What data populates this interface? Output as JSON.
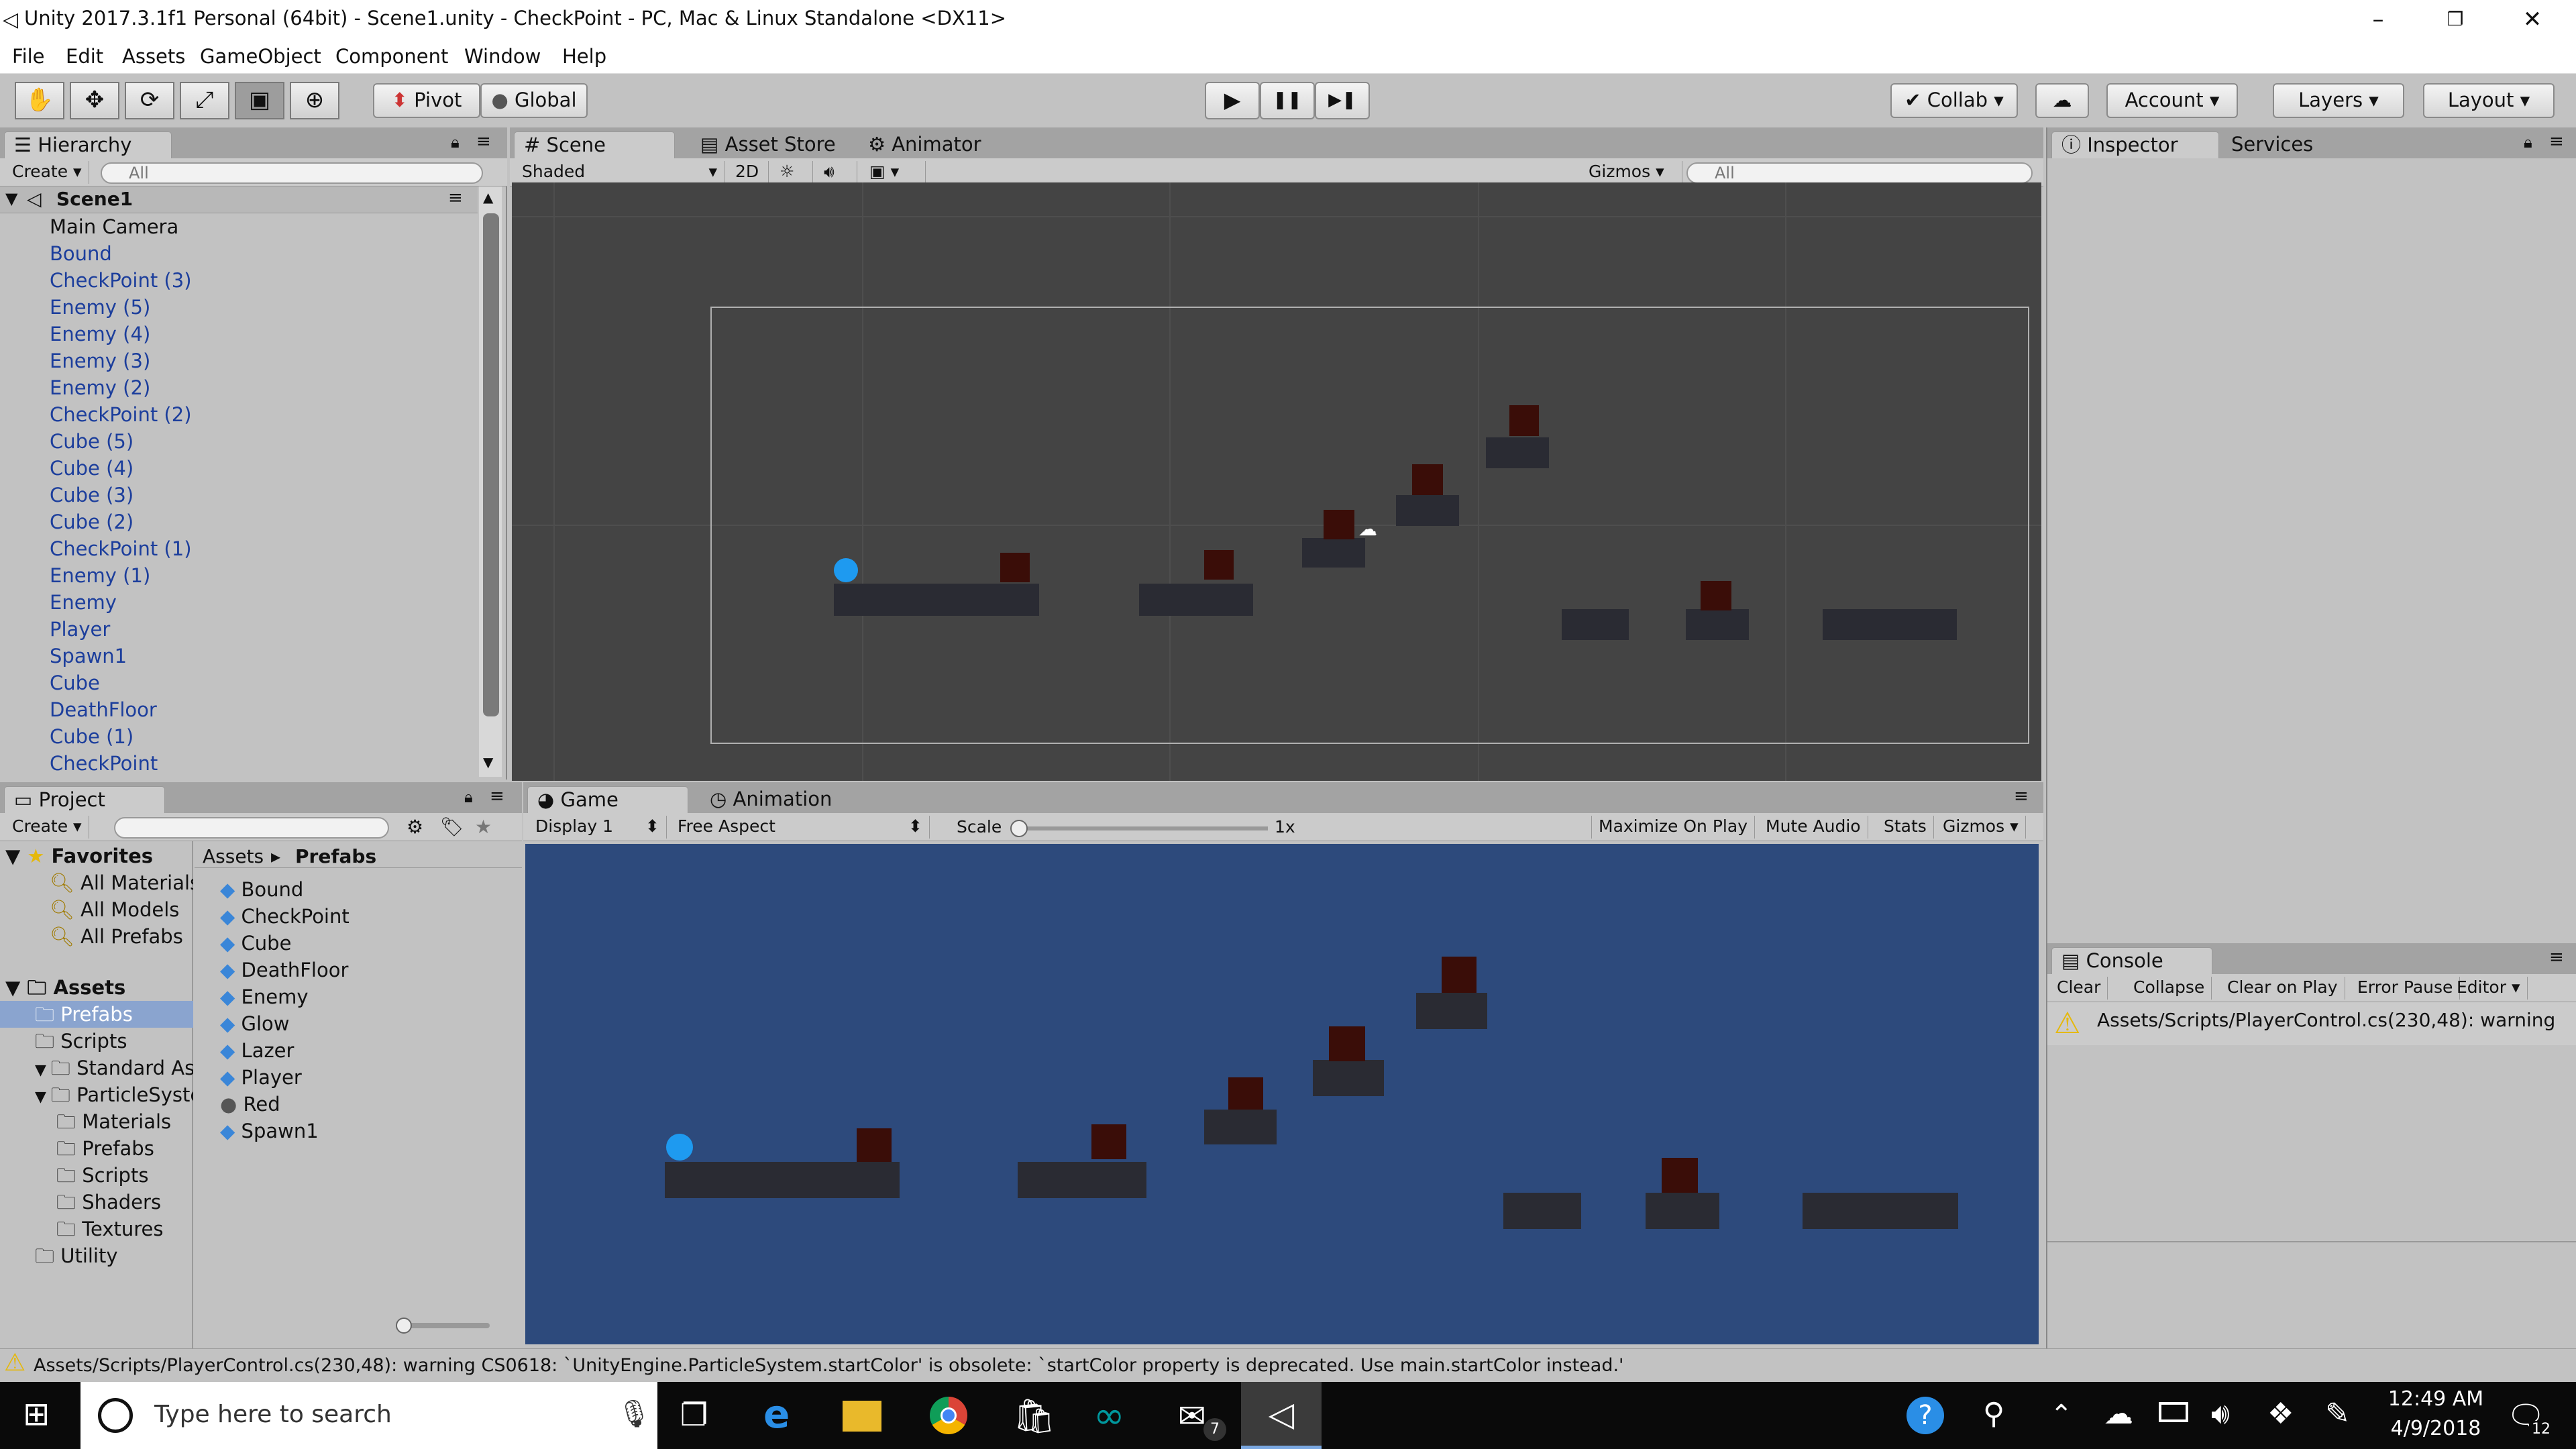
{
  "window": {
    "title": "Unity 2017.3.1f1 Personal (64bit) - Scene1.unity - CheckPoint - PC, Mac & Linux Standalone <DX11>",
    "minimize": "–",
    "restore": "❐",
    "close": "✕"
  },
  "menu": [
    "File",
    "Edit",
    "Assets",
    "GameObject",
    "Component",
    "Window",
    "Help"
  ],
  "toolbar": {
    "tools": [
      "hand-tool",
      "move-tool",
      "rotate-tool",
      "scale-tool",
      "rect-tool",
      "transform-tool"
    ],
    "tool_glyphs": [
      "✋",
      "✥",
      "⟳",
      "⤢",
      "▣",
      "⊕"
    ],
    "pivot": "Pivot",
    "global": "Global",
    "play": "▶",
    "pause": "❚❚",
    "step": "▶❚",
    "collab": "Collab",
    "cloud": "☁",
    "account": "Account",
    "layers": "Layers",
    "layout": "Layout"
  },
  "hierarchy": {
    "tab": "Hierarchy",
    "create": "Create",
    "search_placeholder": "All",
    "scene": "Scene1",
    "items": [
      "Main Camera",
      "Bound",
      "CheckPoint (3)",
      "Enemy (5)",
      "Enemy (4)",
      "Enemy (3)",
      "Enemy (2)",
      "CheckPoint (2)",
      "Cube (5)",
      "Cube (4)",
      "Cube (3)",
      "Cube (2)",
      "CheckPoint (1)",
      "Enemy (1)",
      "Enemy",
      "Player",
      "Spawn1",
      "Cube",
      "DeathFloor",
      "Cube (1)",
      "CheckPoint"
    ]
  },
  "scene": {
    "tabs": [
      "Scene",
      "Asset Store",
      "Animator"
    ],
    "shading": "Shaded",
    "mode2d": "2D",
    "gizmos": "Gizmos",
    "search_placeholder": "All"
  },
  "inspector": {
    "tabs": [
      "Inspector",
      "Services"
    ]
  },
  "project": {
    "tab": "Project",
    "create": "Create",
    "favorites": "Favorites",
    "fav_items": [
      "All Materials",
      "All Models",
      "All Prefabs"
    ],
    "assets": "Assets",
    "tree": [
      {
        "label": "Prefabs",
        "level": 1
      },
      {
        "label": "Scripts",
        "level": 1
      },
      {
        "label": "Standard Assets",
        "level": 1
      },
      {
        "label": "ParticleSystems",
        "level": 2
      },
      {
        "label": "Materials",
        "level": 3
      },
      {
        "label": "Prefabs",
        "level": 3
      },
      {
        "label": "Scripts",
        "level": 3
      },
      {
        "label": "Shaders",
        "level": 3
      },
      {
        "label": "Textures",
        "level": 3
      },
      {
        "label": "Utility",
        "level": 2
      }
    ],
    "breadcrumb": [
      "Assets",
      "Prefabs"
    ],
    "files": [
      "Bound",
      "CheckPoint",
      "Cube",
      "DeathFloor",
      "Enemy",
      "Glow",
      "Lazer",
      "Player",
      "Red",
      "Spawn1"
    ]
  },
  "game": {
    "tabs": [
      "Game",
      "Animation"
    ],
    "display": "Display 1",
    "aspect": "Free Aspect",
    "scale_label": "Scale",
    "scale_value": "1x",
    "maximize": "Maximize On Play",
    "mute": "Mute Audio",
    "stats": "Stats",
    "gizmos": "Gizmos"
  },
  "console": {
    "tab": "Console",
    "buttons": [
      "Clear",
      "Collapse",
      "Clear on Play",
      "Error Pause",
      "Editor"
    ],
    "message": "Assets/Scripts/PlayerControl.cs(230,48): warning"
  },
  "status": {
    "message": "Assets/Scripts/PlayerControl.cs(230,48): warning CS0618: `UnityEngine.ParticleSystem.startColor' is obsolete: `startColor property is deprecated. Use main.startColor instead.'"
  },
  "taskbar": {
    "search_placeholder": "Type here to search",
    "time": "12:49 AM",
    "date": "4/9/2018",
    "mail_badge": "7",
    "notif_badge": "12"
  },
  "colors": {
    "accent": "#1c3e9c",
    "player": "#1e9af0",
    "platform": "#2a2b33",
    "enemy": "#3a0d08",
    "game_bg": "#2d4a7c",
    "scene_bg": "#444444"
  }
}
